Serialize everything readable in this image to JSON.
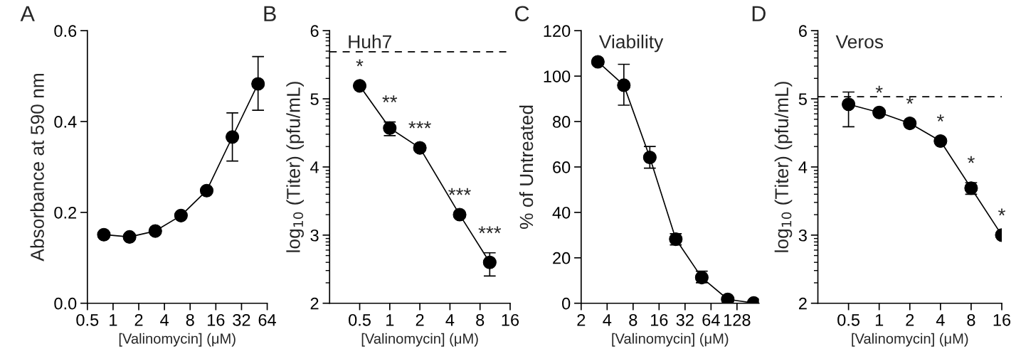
{
  "chart_data": [
    {
      "type": "line",
      "xlabel": "[Valinomycin] (μM)",
      "ylabel": "Absorbance at 590 nm",
      "log": "x",
      "x": [
        0.78,
        1.56,
        3.125,
        6.25,
        12.5,
        25,
        50
      ],
      "series": [
        {
          "color": "#000000",
          "values": [
            0.151,
            0.146,
            0.159,
            0.193,
            0.248,
            0.366,
            0.483
          ],
          "errors": [
            null,
            null,
            null,
            null,
            null,
            [
              0.313,
              0.419
            ],
            [
              0.425,
              0.543
            ]
          ]
        }
      ],
      "xlim": [
        0.5,
        64
      ],
      "xticks": [
        0.5,
        1,
        2,
        4,
        8,
        16,
        32,
        64
      ],
      "ylim": [
        0,
        0.6
      ],
      "yticks": [
        {
          "value": 0,
          "label": "0.0"
        },
        0.2,
        0.4,
        0.6
      ],
      "marker": "circle",
      "line_style": "solid",
      "grid": false,
      "legend": false,
      "annotations": [
        "A"
      ]
    },
    {
      "type": "line",
      "xlabel": "[Valinomycin] (μM)",
      "ylabel": "log$_{10}$ (Titer) (pfu/mL)",
      "log": "x",
      "x": [
        0.5,
        1,
        2,
        5,
        10
      ],
      "series": [
        {
          "color": "#000000",
          "values": [
            5.19,
            4.57,
            4.28,
            3.3,
            2.6
          ],
          "errors": [
            null,
            [
              4.46,
              4.66
            ],
            null,
            null,
            [
              2.4,
              2.74
            ]
          ]
        }
      ],
      "xlim": [
        0.25,
        16
      ],
      "xticks": [
        0.5,
        1,
        2,
        4,
        8,
        16
      ],
      "ylim": [
        2,
        6
      ],
      "yticks": [
        2,
        {
          "value": 2.3,
          "label": null
        },
        {
          "value": 2.48,
          "label": null
        },
        {
          "value": 2.6,
          "label": null
        },
        {
          "value": 2.7,
          "label": null
        },
        {
          "value": 2.78,
          "label": null
        },
        {
          "value": 2.85,
          "label": null
        },
        {
          "value": 2.9,
          "label": null
        },
        {
          "value": 2.95,
          "label": null
        },
        3,
        {
          "value": 3.3,
          "label": null
        },
        {
          "value": 3.48,
          "label": null
        },
        {
          "value": 3.6,
          "label": null
        },
        {
          "value": 3.7,
          "label": null
        },
        {
          "value": 3.78,
          "label": null
        },
        {
          "value": 3.85,
          "label": null
        },
        {
          "value": 3.9,
          "label": null
        },
        {
          "value": 3.95,
          "label": null
        },
        4,
        {
          "value": 4.3,
          "label": null
        },
        {
          "value": 4.48,
          "label": null
        },
        {
          "value": 4.6,
          "label": null
        },
        {
          "value": 4.7,
          "label": null
        },
        {
          "value": 4.78,
          "label": null
        },
        {
          "value": 4.85,
          "label": null
        },
        {
          "value": 4.9,
          "label": null
        },
        {
          "value": 4.95,
          "label": null
        },
        5,
        {
          "value": 5.3,
          "label": null
        },
        {
          "value": 5.48,
          "label": null
        },
        {
          "value": 5.6,
          "label": null
        },
        {
          "value": 5.7,
          "label": null
        },
        {
          "value": 5.78,
          "label": null
        },
        {
          "value": 5.85,
          "label": null
        },
        {
          "value": 5.9,
          "label": null
        },
        {
          "value": 5.95,
          "label": null
        },
        6
      ],
      "ref_lines": [
        {
          "axis": "y",
          "value": 5.69,
          "color": "#000000",
          "line_style": "dashed"
        }
      ],
      "marker": "circle",
      "line_style": "solid",
      "grid": false,
      "legend": false,
      "annotations": [
        "B",
        "Huh7",
        {
          "text": "*",
          "x": 0.5,
          "y": 5.19
        },
        {
          "text": "**",
          "x": 1,
          "y": 4.66
        },
        {
          "text": "***",
          "x": 2,
          "y": 4.28
        },
        {
          "text": "***",
          "x": 5,
          "y": 3.3
        },
        {
          "text": "***",
          "x": 10,
          "y": 2.74
        }
      ]
    },
    {
      "type": "line",
      "xlabel": "[Valinomycin] (μM)",
      "ylabel": "% of Untreated",
      "log": "x",
      "x": [
        3.125,
        6.25,
        12.5,
        25,
        50,
        100,
        200
      ],
      "series": [
        {
          "color": "#000000",
          "values": [
            106.3,
            96.0,
            64.2,
            28.2,
            11.3,
            1.7,
            0.1
          ],
          "errors": [
            null,
            [
              87.2,
              105.2
            ],
            [
              59.5,
              69.0
            ],
            [
              25.7,
              30.6
            ],
            [
              9.0,
              14.1
            ],
            null,
            null
          ]
        }
      ],
      "xlim": [
        2,
        230
      ],
      "xticks": [
        2,
        4,
        8,
        16,
        32,
        64,
        128
      ],
      "ylim": [
        0,
        120
      ],
      "yticks": [
        0,
        20,
        40,
        60,
        80,
        100,
        120
      ],
      "marker": "circle",
      "line_style": "solid",
      "grid": false,
      "legend": false,
      "annotations": [
        "C",
        "Viability"
      ]
    },
    {
      "type": "line",
      "xlabel": "[Valinomycin] (μM)",
      "ylabel": "log$_{10}$ (Titer) (pfu/mL)",
      "log": "x",
      "x": [
        0.5,
        1,
        2,
        4,
        8,
        16
      ],
      "series": [
        {
          "color": "#000000",
          "values": [
            4.92,
            4.8,
            4.64,
            4.38,
            3.69,
            3.0
          ],
          "errors": [
            [
              4.59,
              5.1
            ],
            null,
            null,
            null,
            [
              3.6,
              3.77
            ],
            null
          ]
        }
      ],
      "xlim": [
        0.25,
        16
      ],
      "xticks": [
        0.5,
        1,
        2,
        4,
        8,
        16
      ],
      "ylim": [
        2,
        6
      ],
      "yticks": [
        2,
        {
          "value": 2.3,
          "label": null
        },
        {
          "value": 2.48,
          "label": null
        },
        {
          "value": 2.6,
          "label": null
        },
        {
          "value": 2.7,
          "label": null
        },
        {
          "value": 2.78,
          "label": null
        },
        {
          "value": 2.85,
          "label": null
        },
        {
          "value": 2.9,
          "label": null
        },
        {
          "value": 2.95,
          "label": null
        },
        3,
        {
          "value": 3.3,
          "label": null
        },
        {
          "value": 3.48,
          "label": null
        },
        {
          "value": 3.6,
          "label": null
        },
        {
          "value": 3.7,
          "label": null
        },
        {
          "value": 3.78,
          "label": null
        },
        {
          "value": 3.85,
          "label": null
        },
        {
          "value": 3.9,
          "label": null
        },
        {
          "value": 3.95,
          "label": null
        },
        4,
        {
          "value": 4.3,
          "label": null
        },
        {
          "value": 4.48,
          "label": null
        },
        {
          "value": 4.6,
          "label": null
        },
        {
          "value": 4.7,
          "label": null
        },
        {
          "value": 4.78,
          "label": null
        },
        {
          "value": 4.85,
          "label": null
        },
        {
          "value": 4.9,
          "label": null
        },
        {
          "value": 4.95,
          "label": null
        },
        5,
        {
          "value": 5.3,
          "label": null
        },
        {
          "value": 5.48,
          "label": null
        },
        {
          "value": 5.6,
          "label": null
        },
        {
          "value": 5.7,
          "label": null
        },
        {
          "value": 5.78,
          "label": null
        },
        {
          "value": 5.85,
          "label": null
        },
        {
          "value": 5.9,
          "label": null
        },
        {
          "value": 5.95,
          "label": null
        },
        6
      ],
      "ref_lines": [
        {
          "axis": "y",
          "value": 5.03,
          "color": "#000000",
          "line_style": "dashed"
        }
      ],
      "marker": "circle",
      "line_style": "solid",
      "grid": false,
      "legend": false,
      "annotations": [
        "D",
        "Veros",
        {
          "text": "*",
          "x": 1,
          "y": 4.8
        },
        {
          "text": "*",
          "x": 2,
          "y": 4.64
        },
        {
          "text": "*",
          "x": 4,
          "y": 4.38
        },
        {
          "text": "*",
          "x": 8,
          "y": 3.77
        },
        {
          "text": "*",
          "x": 16,
          "y": 3.0
        }
      ]
    }
  ]
}
